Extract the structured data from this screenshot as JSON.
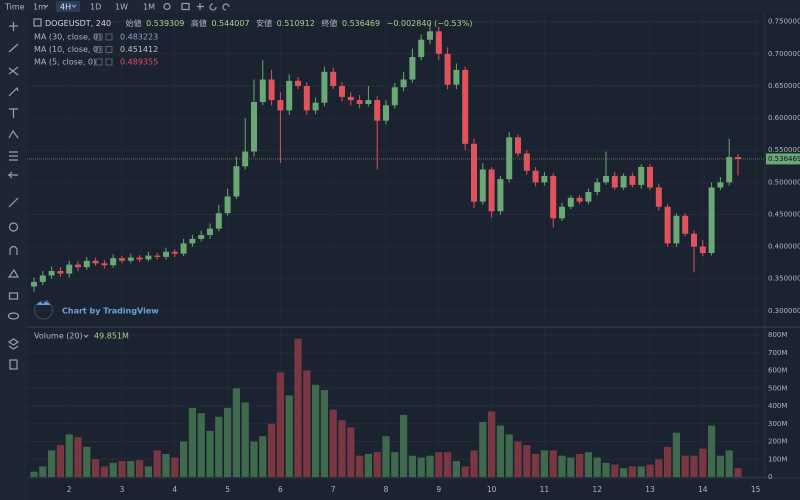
{
  "toolbar": {
    "items": [
      "Time",
      "1m",
      "4H",
      "1D",
      "1W",
      "1M"
    ]
  },
  "chart_data": {
    "type": "candlestick",
    "symbol": "DOGEUSDT, 240",
    "ohlc_labels": {
      "open": "始値",
      "high": "高値",
      "low": "安値",
      "close": "終値"
    },
    "change": {
      "value": -0.00284,
      "percent": -0.53,
      "label": "−0.002840 (−0.53%)"
    },
    "indicators": [
      {
        "name": "MA (30, close, 0)",
        "value": 0.483223,
        "color": "#8ea4c8"
      },
      {
        "name": "MA (10, close, 0)",
        "value": 0.451412,
        "color": "#b9c2d0"
      },
      {
        "name": "MA (5, close, 0)",
        "value": 0.489355,
        "color": "#e0506a"
      }
    ],
    "watermark": "Chart by TradingView",
    "categories": [
      null,
      null,
      null,
      null,
      "2",
      null,
      null,
      null,
      null,
      null,
      "3",
      null,
      null,
      null,
      null,
      null,
      "4",
      null,
      null,
      null,
      null,
      null,
      "5",
      null,
      null,
      null,
      null,
      null,
      "6",
      null,
      null,
      null,
      null,
      null,
      "7",
      null,
      null,
      null,
      null,
      null,
      "8",
      null,
      null,
      null,
      null,
      null,
      "9",
      null,
      null,
      null,
      null,
      null,
      "10",
      null,
      null,
      null,
      null,
      null,
      "11",
      null,
      null,
      null,
      null,
      null,
      "12",
      null,
      null,
      null,
      null,
      null,
      "13",
      null,
      null,
      null,
      null,
      null,
      "14",
      null,
      null,
      null,
      null,
      null,
      "15"
    ],
    "open": [
      0.338,
      0.345,
      0.355,
      0.362,
      0.358,
      0.372,
      0.368,
      0.378,
      0.374,
      0.371,
      0.382,
      0.378,
      0.383,
      0.38,
      0.386,
      0.384,
      0.392,
      0.389,
      0.405,
      0.412,
      0.418,
      0.428,
      0.452,
      0.478,
      0.525,
      0.548,
      0.625,
      0.66,
      0.628,
      0.612,
      0.658,
      0.65,
      0.612,
      0.624,
      0.672,
      0.65,
      0.633,
      0.628,
      0.622,
      0.628,
      0.596,
      0.62,
      0.648,
      0.66,
      0.695,
      0.722,
      0.735,
      0.7,
      0.652,
      0.675,
      0.56,
      0.47,
      0.52,
      0.455,
      0.505,
      0.57,
      0.545,
      0.518,
      0.5,
      0.51,
      0.444,
      0.462,
      0.476,
      0.47,
      0.485,
      0.5,
      0.51,
      0.492,
      0.51,
      0.496,
      0.524,
      0.492,
      0.462,
      0.405,
      0.448,
      0.42,
      0.4,
      0.39,
      0.492,
      0.5,
      0.539309,
      null,
      null
    ],
    "high": [
      0.352,
      0.362,
      0.369,
      0.368,
      0.378,
      0.377,
      0.384,
      0.383,
      0.379,
      0.388,
      0.386,
      0.389,
      0.387,
      0.392,
      0.39,
      0.398,
      0.396,
      0.412,
      0.418,
      0.425,
      0.436,
      0.465,
      0.49,
      0.54,
      0.6,
      0.66,
      0.69,
      0.675,
      0.64,
      0.668,
      0.664,
      0.656,
      0.632,
      0.68,
      0.678,
      0.656,
      0.64,
      0.636,
      0.65,
      0.634,
      0.628,
      0.655,
      0.672,
      0.708,
      0.73,
      0.748,
      0.742,
      0.71,
      0.685,
      0.68,
      0.568,
      0.53,
      0.524,
      0.51,
      0.578,
      0.574,
      0.55,
      0.524,
      0.516,
      0.514,
      0.468,
      0.48,
      0.48,
      0.49,
      0.506,
      0.548,
      0.516,
      0.514,
      0.515,
      0.528,
      0.528,
      0.498,
      0.466,
      0.452,
      0.452,
      0.425,
      0.41,
      0.5,
      0.508,
      0.568,
      0.544007,
      null,
      null
    ],
    "low": [
      0.33,
      0.34,
      0.35,
      0.353,
      0.352,
      0.362,
      0.364,
      0.37,
      0.366,
      0.367,
      0.374,
      0.374,
      0.376,
      0.377,
      0.38,
      0.38,
      0.384,
      0.385,
      0.4,
      0.408,
      0.412,
      0.424,
      0.448,
      0.474,
      0.52,
      0.54,
      0.62,
      0.62,
      0.53,
      0.605,
      0.645,
      0.605,
      0.606,
      0.618,
      0.645,
      0.626,
      0.62,
      0.615,
      0.618,
      0.52,
      0.59,
      0.615,
      0.642,
      0.655,
      0.69,
      0.715,
      0.69,
      0.645,
      0.645,
      0.55,
      0.46,
      0.465,
      0.445,
      0.45,
      0.5,
      0.54,
      0.512,
      0.494,
      0.495,
      0.43,
      0.44,
      0.458,
      0.466,
      0.466,
      0.48,
      0.496,
      0.488,
      0.488,
      0.492,
      0.49,
      0.488,
      0.456,
      0.4,
      0.4,
      0.416,
      0.36,
      0.385,
      0.386,
      0.488,
      0.495,
      0.510912,
      null,
      null
    ],
    "close": [
      0.345,
      0.355,
      0.362,
      0.358,
      0.372,
      0.368,
      0.378,
      0.374,
      0.371,
      0.382,
      0.378,
      0.383,
      0.38,
      0.386,
      0.384,
      0.392,
      0.389,
      0.405,
      0.412,
      0.418,
      0.428,
      0.452,
      0.478,
      0.525,
      0.548,
      0.625,
      0.66,
      0.628,
      0.612,
      0.658,
      0.65,
      0.612,
      0.624,
      0.672,
      0.65,
      0.633,
      0.628,
      0.622,
      0.628,
      0.596,
      0.62,
      0.648,
      0.66,
      0.695,
      0.722,
      0.735,
      0.7,
      0.652,
      0.675,
      0.56,
      0.47,
      0.52,
      0.455,
      0.505,
      0.57,
      0.545,
      0.518,
      0.5,
      0.51,
      0.444,
      0.462,
      0.476,
      0.47,
      0.485,
      0.5,
      0.51,
      0.492,
      0.51,
      0.496,
      0.524,
      0.492,
      0.462,
      0.405,
      0.448,
      0.42,
      0.4,
      0.39,
      0.492,
      0.5,
      0.539309,
      0.536469,
      null,
      null
    ],
    "up_color": "#6aa874",
    "down_color": "#e0525c",
    "ylim": [
      0.278,
      0.762
    ],
    "yticks": [
      {
        "value": 0.75,
        "label": "0.750000"
      },
      {
        "value": 0.7,
        "label": "0.700000"
      },
      {
        "value": 0.65,
        "label": "0.650000"
      },
      {
        "value": 0.6,
        "label": "0.600000"
      },
      {
        "value": 0.55,
        "label": "0.550000"
      },
      {
        "value": 0.5,
        "label": "0.500000"
      },
      {
        "value": 0.45,
        "label": "0.450000"
      },
      {
        "value": 0.4,
        "label": "0.400000"
      },
      {
        "value": 0.35,
        "label": "0.350000"
      },
      {
        "value": 0.3,
        "label": "0.300000"
      }
    ],
    "grid": true,
    "volume": {
      "title": "Volume (20)",
      "values": [
        30,
        60,
        150,
        180,
        240,
        225,
        170,
        100,
        60,
        80,
        90,
        90,
        95,
        60,
        150,
        130,
        110,
        200,
        390,
        360,
        260,
        340,
        390,
        500,
        420,
        200,
        230,
        300,
        590,
        460,
        780,
        600,
        520,
        490,
        380,
        320,
        280,
        120,
        130,
        140,
        230,
        140,
        350,
        120,
        110,
        120,
        140,
        140,
        90,
        60,
        150,
        310,
        370,
        290,
        240,
        200,
        180,
        130,
        150,
        150,
        120,
        110,
        130,
        140,
        110,
        80,
        70,
        50,
        60,
        60,
        70,
        100,
        170,
        250,
        120,
        120,
        160,
        290,
        120,
        150,
        49.851,
        null,
        null
      ],
      "value_labels": [
        null,
        null,
        null,
        null,
        null,
        null,
        null,
        null,
        null,
        null,
        null,
        null,
        null,
        null,
        null,
        null,
        null,
        null,
        null,
        null,
        null,
        null,
        null,
        null,
        null,
        null,
        null,
        null,
        null,
        null,
        null,
        null,
        null,
        null,
        null,
        null,
        null,
        null,
        null,
        null,
        null,
        null,
        null,
        null,
        null,
        null,
        null,
        null,
        null,
        null,
        null,
        null,
        null,
        null,
        null,
        null,
        null,
        null,
        null,
        null,
        null,
        null,
        null,
        null,
        null,
        null,
        null,
        null,
        null,
        null,
        null,
        null,
        null,
        null,
        null,
        null,
        null,
        null,
        null,
        null,
        "49.851M",
        null,
        null
      ],
      "up_color": "#3f6a4d",
      "down_color": "#7a3641",
      "ylim": [
        0,
        840
      ],
      "yticks": [
        {
          "value": 800,
          "label": "800M"
        },
        {
          "value": 700,
          "label": "700M"
        },
        {
          "value": 600,
          "label": "600M"
        },
        {
          "value": 500,
          "label": "500M"
        },
        {
          "value": 400,
          "label": "400M"
        },
        {
          "value": 300,
          "label": "300M"
        },
        {
          "value": 200,
          "label": "200M"
        },
        {
          "value": 100,
          "label": "100M"
        },
        {
          "value": 0,
          "label": "0"
        }
      ]
    }
  }
}
